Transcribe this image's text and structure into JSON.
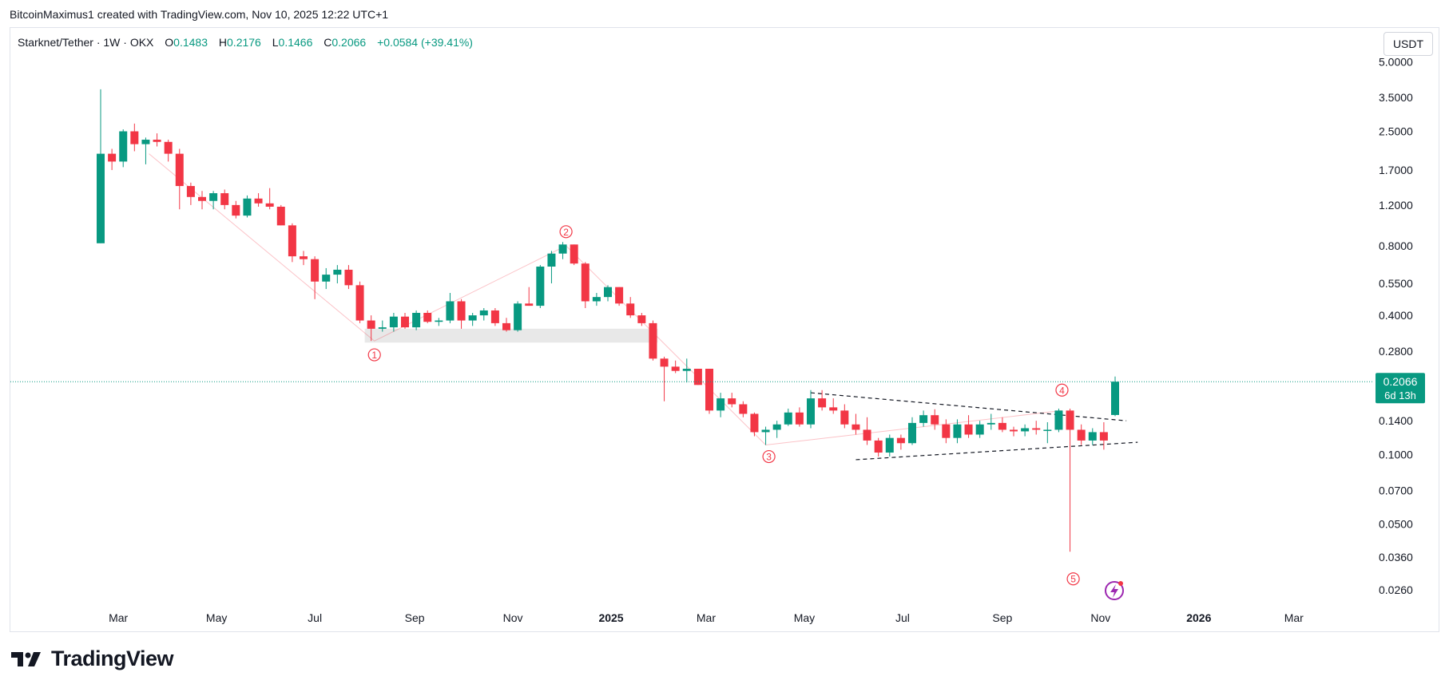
{
  "header": {
    "attribution": "BitcoinMaximus1 created with TradingView.com, Nov 10, 2025 12:22 UTC+1"
  },
  "symbol_bar": {
    "title": "Starknet/Tether · 1W · OKX",
    "o_label": "O",
    "o_value": "0.1483",
    "h_label": "H",
    "h_value": "0.2176",
    "l_label": "L",
    "l_value": "0.1466",
    "c_label": "C",
    "c_value": "0.2066",
    "change": "+0.0584 (+39.41%)"
  },
  "currency_button": "USDT",
  "footer": {
    "brand": "TradingView"
  },
  "colors": {
    "up": "#089981",
    "down": "#f23645",
    "zone": "#e5e5e5",
    "price_tag": "#089981",
    "wave": "#f23645",
    "grid": "#e0e3eb"
  },
  "chart_data": {
    "type": "candlestick",
    "scale": "log",
    "ylim": [
      0.022,
      5.3
    ],
    "yticks": [
      0.026,
      0.036,
      0.05,
      0.07,
      0.1,
      0.14,
      0.2,
      0.28,
      0.4,
      0.55,
      0.8,
      1.2,
      1.7,
      2.5,
      3.5,
      5.0
    ],
    "ytick_labels": [
      "0.0260",
      "0.0360",
      "0.0500",
      "0.0700",
      "0.1000",
      "0.1400",
      "0.2000",
      "0.2800",
      "0.4000",
      "0.5500",
      "0.8000",
      "1.2000",
      "1.7000",
      "2.5000",
      "3.5000",
      "5.0000"
    ],
    "xlabels": [
      {
        "date": "2024-03-01",
        "label": "Mar",
        "bold": false
      },
      {
        "date": "2024-05-01",
        "label": "May",
        "bold": false
      },
      {
        "date": "2024-07-01",
        "label": "Jul",
        "bold": false
      },
      {
        "date": "2024-09-01",
        "label": "Sep",
        "bold": false
      },
      {
        "date": "2024-11-01",
        "label": "Nov",
        "bold": false
      },
      {
        "date": "2025-01-01",
        "label": "2025",
        "bold": true
      },
      {
        "date": "2025-03-01",
        "label": "Mar",
        "bold": false
      },
      {
        "date": "2025-05-01",
        "label": "May",
        "bold": false
      },
      {
        "date": "2025-07-01",
        "label": "Jul",
        "bold": false
      },
      {
        "date": "2025-09-01",
        "label": "Sep",
        "bold": false
      },
      {
        "date": "2025-11-01",
        "label": "Nov",
        "bold": false
      },
      {
        "date": "2026-01-01",
        "label": "2026",
        "bold": true
      },
      {
        "date": "2026-03-01",
        "label": "Mar",
        "bold": false
      }
    ],
    "candles": [
      {
        "date": "2024-02-19",
        "o": 0.82,
        "h": 3.8,
        "l": 0.82,
        "c": 2.0
      },
      {
        "date": "2024-02-26",
        "o": 2.0,
        "h": 2.1,
        "l": 1.7,
        "c": 1.85
      },
      {
        "date": "2024-03-04",
        "o": 1.85,
        "h": 2.55,
        "l": 1.75,
        "c": 2.5
      },
      {
        "date": "2024-03-11",
        "o": 2.5,
        "h": 2.7,
        "l": 2.05,
        "c": 2.2
      },
      {
        "date": "2024-03-18",
        "o": 2.2,
        "h": 2.35,
        "l": 1.8,
        "c": 2.3
      },
      {
        "date": "2024-03-25",
        "o": 2.3,
        "h": 2.45,
        "l": 2.15,
        "c": 2.25
      },
      {
        "date": "2024-04-01",
        "o": 2.25,
        "h": 2.3,
        "l": 1.85,
        "c": 2.0
      },
      {
        "date": "2024-04-08",
        "o": 2.0,
        "h": 2.1,
        "l": 1.15,
        "c": 1.45
      },
      {
        "date": "2024-04-15",
        "o": 1.45,
        "h": 1.5,
        "l": 1.2,
        "c": 1.3
      },
      {
        "date": "2024-04-22",
        "o": 1.3,
        "h": 1.38,
        "l": 1.15,
        "c": 1.25
      },
      {
        "date": "2024-04-29",
        "o": 1.25,
        "h": 1.38,
        "l": 1.15,
        "c": 1.35
      },
      {
        "date": "2024-05-06",
        "o": 1.35,
        "h": 1.4,
        "l": 1.15,
        "c": 1.2
      },
      {
        "date": "2024-05-13",
        "o": 1.2,
        "h": 1.25,
        "l": 1.05,
        "c": 1.08
      },
      {
        "date": "2024-05-20",
        "o": 1.08,
        "h": 1.32,
        "l": 1.06,
        "c": 1.28
      },
      {
        "date": "2024-05-27",
        "o": 1.28,
        "h": 1.35,
        "l": 1.18,
        "c": 1.22
      },
      {
        "date": "2024-06-03",
        "o": 1.22,
        "h": 1.42,
        "l": 1.15,
        "c": 1.18
      },
      {
        "date": "2024-06-10",
        "o": 1.18,
        "h": 1.2,
        "l": 0.98,
        "c": 0.98
      },
      {
        "date": "2024-06-17",
        "o": 0.98,
        "h": 1.0,
        "l": 0.68,
        "c": 0.72
      },
      {
        "date": "2024-06-24",
        "o": 0.72,
        "h": 0.76,
        "l": 0.66,
        "c": 0.7
      },
      {
        "date": "2024-07-01",
        "o": 0.7,
        "h": 0.72,
        "l": 0.47,
        "c": 0.56
      },
      {
        "date": "2024-07-08",
        "o": 0.56,
        "h": 0.64,
        "l": 0.52,
        "c": 0.6
      },
      {
        "date": "2024-07-15",
        "o": 0.6,
        "h": 0.66,
        "l": 0.55,
        "c": 0.63
      },
      {
        "date": "2024-07-22",
        "o": 0.63,
        "h": 0.66,
        "l": 0.52,
        "c": 0.54
      },
      {
        "date": "2024-07-29",
        "o": 0.54,
        "h": 0.56,
        "l": 0.37,
        "c": 0.38
      },
      {
        "date": "2024-08-05",
        "o": 0.38,
        "h": 0.4,
        "l": 0.31,
        "c": 0.35
      },
      {
        "date": "2024-08-12",
        "o": 0.35,
        "h": 0.38,
        "l": 0.34,
        "c": 0.355
      },
      {
        "date": "2024-08-19",
        "o": 0.355,
        "h": 0.41,
        "l": 0.34,
        "c": 0.395
      },
      {
        "date": "2024-08-26",
        "o": 0.395,
        "h": 0.41,
        "l": 0.35,
        "c": 0.355
      },
      {
        "date": "2024-09-02",
        "o": 0.355,
        "h": 0.42,
        "l": 0.345,
        "c": 0.41
      },
      {
        "date": "2024-09-09",
        "o": 0.41,
        "h": 0.42,
        "l": 0.37,
        "c": 0.375
      },
      {
        "date": "2024-09-16",
        "o": 0.375,
        "h": 0.39,
        "l": 0.36,
        "c": 0.38
      },
      {
        "date": "2024-09-23",
        "o": 0.38,
        "h": 0.5,
        "l": 0.37,
        "c": 0.46
      },
      {
        "date": "2024-09-30",
        "o": 0.46,
        "h": 0.47,
        "l": 0.35,
        "c": 0.38
      },
      {
        "date": "2024-10-07",
        "o": 0.38,
        "h": 0.41,
        "l": 0.36,
        "c": 0.4
      },
      {
        "date": "2024-10-14",
        "o": 0.4,
        "h": 0.43,
        "l": 0.38,
        "c": 0.42
      },
      {
        "date": "2024-10-21",
        "o": 0.42,
        "h": 0.43,
        "l": 0.36,
        "c": 0.37
      },
      {
        "date": "2024-10-28",
        "o": 0.37,
        "h": 0.39,
        "l": 0.34,
        "c": 0.345
      },
      {
        "date": "2024-11-04",
        "o": 0.345,
        "h": 0.46,
        "l": 0.34,
        "c": 0.45
      },
      {
        "date": "2024-11-11",
        "o": 0.45,
        "h": 0.53,
        "l": 0.44,
        "c": 0.44
      },
      {
        "date": "2024-11-18",
        "o": 0.44,
        "h": 0.66,
        "l": 0.43,
        "c": 0.65
      },
      {
        "date": "2024-11-25",
        "o": 0.65,
        "h": 0.76,
        "l": 0.55,
        "c": 0.74
      },
      {
        "date": "2024-12-02",
        "o": 0.74,
        "h": 0.83,
        "l": 0.7,
        "c": 0.81
      },
      {
        "date": "2024-12-09",
        "o": 0.81,
        "h": 0.81,
        "l": 0.66,
        "c": 0.67
      },
      {
        "date": "2024-12-16",
        "o": 0.67,
        "h": 0.68,
        "l": 0.43,
        "c": 0.46
      },
      {
        "date": "2024-12-23",
        "o": 0.46,
        "h": 0.5,
        "l": 0.44,
        "c": 0.48
      },
      {
        "date": "2024-12-30",
        "o": 0.48,
        "h": 0.54,
        "l": 0.46,
        "c": 0.53
      },
      {
        "date": "2025-01-06",
        "o": 0.53,
        "h": 0.53,
        "l": 0.44,
        "c": 0.45
      },
      {
        "date": "2025-01-13",
        "o": 0.45,
        "h": 0.48,
        "l": 0.39,
        "c": 0.4
      },
      {
        "date": "2025-01-20",
        "o": 0.4,
        "h": 0.41,
        "l": 0.36,
        "c": 0.37
      },
      {
        "date": "2025-01-27",
        "o": 0.37,
        "h": 0.38,
        "l": 0.255,
        "c": 0.26
      },
      {
        "date": "2025-02-03",
        "o": 0.26,
        "h": 0.265,
        "l": 0.17,
        "c": 0.24
      },
      {
        "date": "2025-02-10",
        "o": 0.24,
        "h": 0.255,
        "l": 0.225,
        "c": 0.23
      },
      {
        "date": "2025-02-17",
        "o": 0.23,
        "h": 0.26,
        "l": 0.205,
        "c": 0.235
      },
      {
        "date": "2025-02-24",
        "o": 0.235,
        "h": 0.235,
        "l": 0.2,
        "c": 0.2
      },
      {
        "date": "2025-03-03",
        "o": 0.235,
        "h": 0.235,
        "l": 0.15,
        "c": 0.155
      },
      {
        "date": "2025-03-10",
        "o": 0.155,
        "h": 0.185,
        "l": 0.145,
        "c": 0.175
      },
      {
        "date": "2025-03-17",
        "o": 0.175,
        "h": 0.185,
        "l": 0.16,
        "c": 0.165
      },
      {
        "date": "2025-03-24",
        "o": 0.165,
        "h": 0.17,
        "l": 0.145,
        "c": 0.15
      },
      {
        "date": "2025-03-31",
        "o": 0.15,
        "h": 0.152,
        "l": 0.12,
        "c": 0.125
      },
      {
        "date": "2025-04-07",
        "o": 0.125,
        "h": 0.132,
        "l": 0.11,
        "c": 0.128
      },
      {
        "date": "2025-04-14",
        "o": 0.128,
        "h": 0.14,
        "l": 0.118,
        "c": 0.135
      },
      {
        "date": "2025-04-21",
        "o": 0.135,
        "h": 0.158,
        "l": 0.133,
        "c": 0.152
      },
      {
        "date": "2025-04-28",
        "o": 0.152,
        "h": 0.16,
        "l": 0.132,
        "c": 0.135
      },
      {
        "date": "2025-05-05",
        "o": 0.135,
        "h": 0.19,
        "l": 0.13,
        "c": 0.175
      },
      {
        "date": "2025-05-12",
        "o": 0.175,
        "h": 0.19,
        "l": 0.155,
        "c": 0.16
      },
      {
        "date": "2025-05-19",
        "o": 0.16,
        "h": 0.175,
        "l": 0.15,
        "c": 0.155
      },
      {
        "date": "2025-05-26",
        "o": 0.155,
        "h": 0.165,
        "l": 0.13,
        "c": 0.135
      },
      {
        "date": "2025-06-02",
        "o": 0.135,
        "h": 0.15,
        "l": 0.122,
        "c": 0.128
      },
      {
        "date": "2025-06-09",
        "o": 0.128,
        "h": 0.145,
        "l": 0.11,
        "c": 0.115
      },
      {
        "date": "2025-06-16",
        "o": 0.115,
        "h": 0.118,
        "l": 0.098,
        "c": 0.102
      },
      {
        "date": "2025-06-23",
        "o": 0.102,
        "h": 0.122,
        "l": 0.098,
        "c": 0.118
      },
      {
        "date": "2025-06-30",
        "o": 0.118,
        "h": 0.122,
        "l": 0.105,
        "c": 0.112
      },
      {
        "date": "2025-07-07",
        "o": 0.112,
        "h": 0.145,
        "l": 0.11,
        "c": 0.137
      },
      {
        "date": "2025-07-14",
        "o": 0.137,
        "h": 0.155,
        "l": 0.132,
        "c": 0.148
      },
      {
        "date": "2025-07-21",
        "o": 0.148,
        "h": 0.157,
        "l": 0.128,
        "c": 0.135
      },
      {
        "date": "2025-07-28",
        "o": 0.135,
        "h": 0.142,
        "l": 0.112,
        "c": 0.118
      },
      {
        "date": "2025-08-04",
        "o": 0.118,
        "h": 0.142,
        "l": 0.112,
        "c": 0.135
      },
      {
        "date": "2025-08-11",
        "o": 0.135,
        "h": 0.148,
        "l": 0.118,
        "c": 0.122
      },
      {
        "date": "2025-08-18",
        "o": 0.122,
        "h": 0.14,
        "l": 0.118,
        "c": 0.135
      },
      {
        "date": "2025-08-25",
        "o": 0.135,
        "h": 0.15,
        "l": 0.128,
        "c": 0.137
      },
      {
        "date": "2025-09-01",
        "o": 0.137,
        "h": 0.145,
        "l": 0.125,
        "c": 0.128
      },
      {
        "date": "2025-09-08",
        "o": 0.128,
        "h": 0.132,
        "l": 0.12,
        "c": 0.126
      },
      {
        "date": "2025-09-15",
        "o": 0.126,
        "h": 0.135,
        "l": 0.12,
        "c": 0.13
      },
      {
        "date": "2025-09-22",
        "o": 0.13,
        "h": 0.14,
        "l": 0.122,
        "c": 0.128
      },
      {
        "date": "2025-09-29",
        "o": 0.128,
        "h": 0.138,
        "l": 0.112,
        "c": 0.128
      },
      {
        "date": "2025-10-06",
        "o": 0.128,
        "h": 0.158,
        "l": 0.125,
        "c": 0.155
      },
      {
        "date": "2025-10-13",
        "o": 0.155,
        "h": 0.158,
        "l": 0.038,
        "c": 0.128
      },
      {
        "date": "2025-10-20",
        "o": 0.128,
        "h": 0.135,
        "l": 0.11,
        "c": 0.115
      },
      {
        "date": "2025-10-27",
        "o": 0.115,
        "h": 0.13,
        "l": 0.11,
        "c": 0.125
      },
      {
        "date": "2025-11-03",
        "o": 0.125,
        "h": 0.138,
        "l": 0.105,
        "c": 0.115
      },
      {
        "date": "2025-11-10",
        "o": 0.1483,
        "h": 0.2176,
        "l": 0.1466,
        "c": 0.2066
      }
    ],
    "last_price_label": "0.2066",
    "countdown_label": "6d 13h",
    "zone": {
      "from": "2024-08-01",
      "to": "2025-01-30",
      "low": 0.305,
      "high": 0.35
    },
    "wave_labels": [
      {
        "label": "1",
        "date": "2024-08-07",
        "price": 0.27
      },
      {
        "label": "2",
        "date": "2024-12-04",
        "price": 0.92
      },
      {
        "label": "3",
        "date": "2025-04-09",
        "price": 0.098
      },
      {
        "label": "4",
        "date": "2025-10-08",
        "price": 0.19
      },
      {
        "label": "5",
        "date": "2025-10-15",
        "price": 0.029
      }
    ],
    "wave_path": [
      {
        "date": "2024-03-20",
        "price": 2.0
      },
      {
        "date": "2024-08-07",
        "price": 0.31
      },
      {
        "date": "2024-12-04",
        "price": 0.8
      },
      {
        "date": "2025-04-07",
        "price": 0.11
      },
      {
        "date": "2025-10-08",
        "price": 0.155
      }
    ],
    "triangle": {
      "upper": [
        {
          "date": "2025-05-05",
          "price": 0.185
        },
        {
          "date": "2025-11-17",
          "price": 0.14
        }
      ],
      "lower": [
        {
          "date": "2025-06-02",
          "price": 0.095
        },
        {
          "date": "2025-11-24",
          "price": 0.113
        }
      ]
    }
  }
}
